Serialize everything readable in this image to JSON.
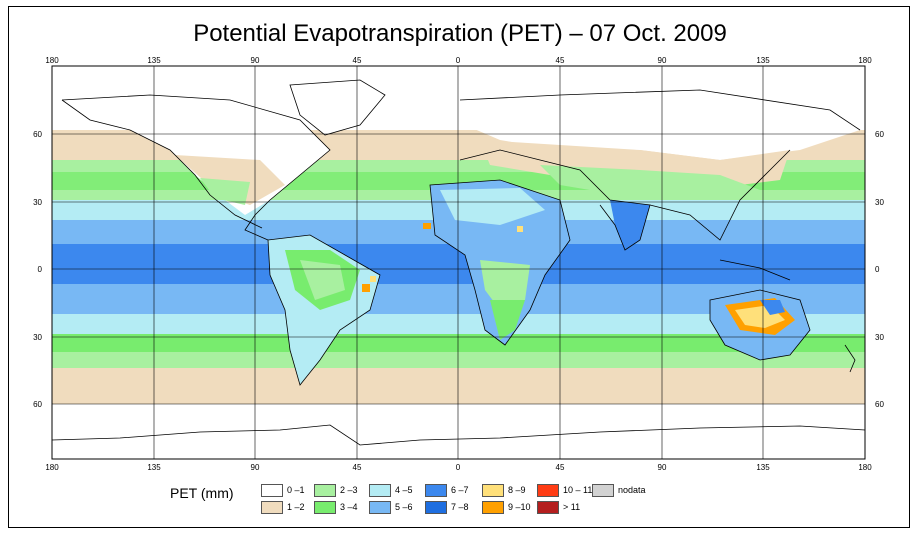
{
  "title": "Potential Evapotranspiration (PET) – 07 Oct. 2009",
  "legend": {
    "title": "PET (mm)",
    "items": [
      {
        "label": "0 –1",
        "color": "#ffffff"
      },
      {
        "label": "1 –2",
        "color": "#f0dcbe"
      },
      {
        "label": "2 –3",
        "color": "#a8f0a0"
      },
      {
        "label": "3 –4",
        "color": "#78ec6e"
      },
      {
        "label": "4 –5",
        "color": "#b4ecf4"
      },
      {
        "label": "5 –6",
        "color": "#78b8f4"
      },
      {
        "label": "6 –7",
        "color": "#3c88ee"
      },
      {
        "label": "7 –8",
        "color": "#1e6ee0"
      },
      {
        "label": "8 –9",
        "color": "#ffe07a"
      },
      {
        "label": "9 –10",
        "color": "#ffa000"
      },
      {
        "label": "10 – 11",
        "color": "#ff3c14"
      },
      {
        "label": "> 11",
        "color": "#b41e1e"
      },
      {
        "label": "nodata",
        "color": "#d2d2d2"
      }
    ]
  },
  "axes": {
    "lon_top": [
      "180",
      "135",
      "90",
      "45",
      "0",
      "45",
      "90",
      "135",
      "180"
    ],
    "lon_bottom": [
      "180",
      "135",
      "90",
      "45",
      "0",
      "45",
      "90",
      "135",
      "180"
    ],
    "lat_left": [
      "60",
      "30",
      "0",
      "30",
      "60"
    ],
    "lat_right": [
      "60",
      "30",
      "0",
      "30",
      "60"
    ]
  }
}
